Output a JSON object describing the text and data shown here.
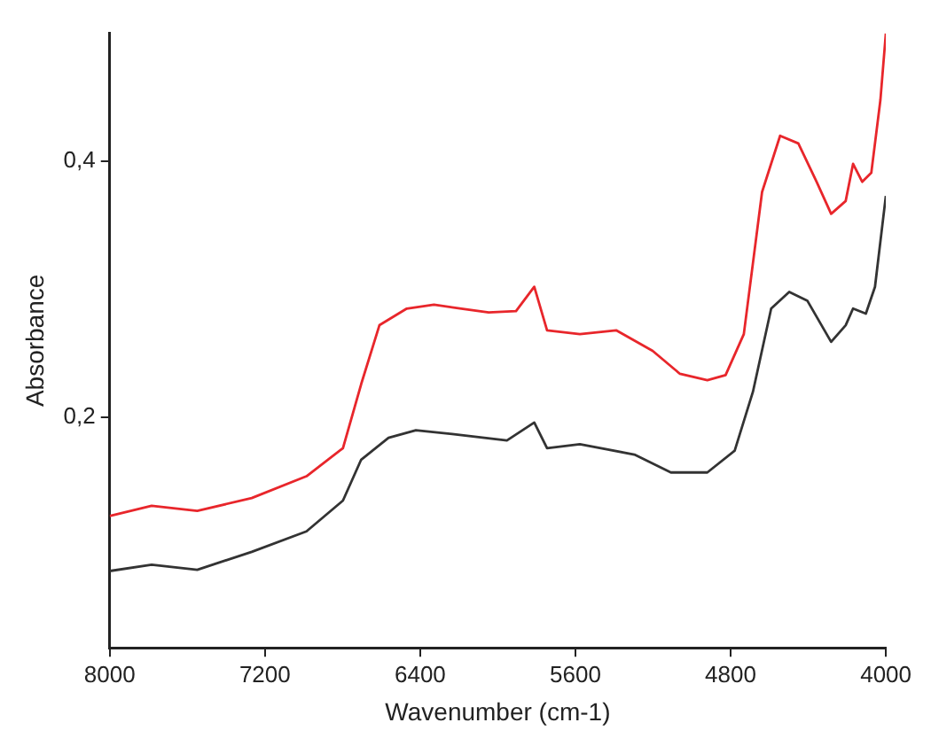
{
  "chart_data": {
    "type": "line",
    "xlabel": "Wavenumber (cm-1)",
    "ylabel": "Absorbance",
    "xlim": [
      8000,
      4000
    ],
    "xticks": [
      8000,
      7200,
      6400,
      5600,
      4800,
      4000
    ],
    "ylim": [
      0.02,
      0.5
    ],
    "yticks": [
      {
        "value": 0.2,
        "label": "0,2"
      },
      {
        "value": 0.4,
        "label": "0,4"
      }
    ],
    "grid": false,
    "legend": false,
    "marker": "none",
    "line_style": "solid",
    "series": [
      {
        "color": "#e8262b",
        "x": [
          8000,
          7784,
          7549,
          7268,
          6986,
          6798,
          6704,
          6610,
          6469,
          6329,
          6188,
          6047,
          5906,
          5812,
          5746,
          5577,
          5390,
          5202,
          5061,
          4920,
          4826,
          4732,
          4638,
          4545,
          4451,
          4357,
          4282,
          4207,
          4169,
          4122,
          4075,
          4028,
          4000
        ],
        "values": [
          0.123,
          0.131,
          0.127,
          0.137,
          0.154,
          0.176,
          0.226,
          0.272,
          0.285,
          0.288,
          0.285,
          0.282,
          0.283,
          0.302,
          0.268,
          0.265,
          0.268,
          0.252,
          0.234,
          0.229,
          0.233,
          0.265,
          0.376,
          0.42,
          0.414,
          0.384,
          0.359,
          0.369,
          0.398,
          0.384,
          0.391,
          0.448,
          0.5
        ]
      },
      {
        "color": "#333333",
        "x": [
          8000,
          7784,
          7549,
          7268,
          6986,
          6798,
          6704,
          6563,
          6422,
          6235,
          5953,
          5812,
          5746,
          5577,
          5296,
          5108,
          4920,
          4779,
          4685,
          4591,
          4498,
          4404,
          4282,
          4207,
          4169,
          4103,
          4056,
          4000
        ],
        "values": [
          0.08,
          0.085,
          0.081,
          0.095,
          0.111,
          0.135,
          0.167,
          0.184,
          0.19,
          0.187,
          0.182,
          0.196,
          0.176,
          0.179,
          0.171,
          0.157,
          0.157,
          0.174,
          0.22,
          0.285,
          0.298,
          0.291,
          0.259,
          0.272,
          0.285,
          0.281,
          0.302,
          0.373
        ]
      }
    ]
  }
}
